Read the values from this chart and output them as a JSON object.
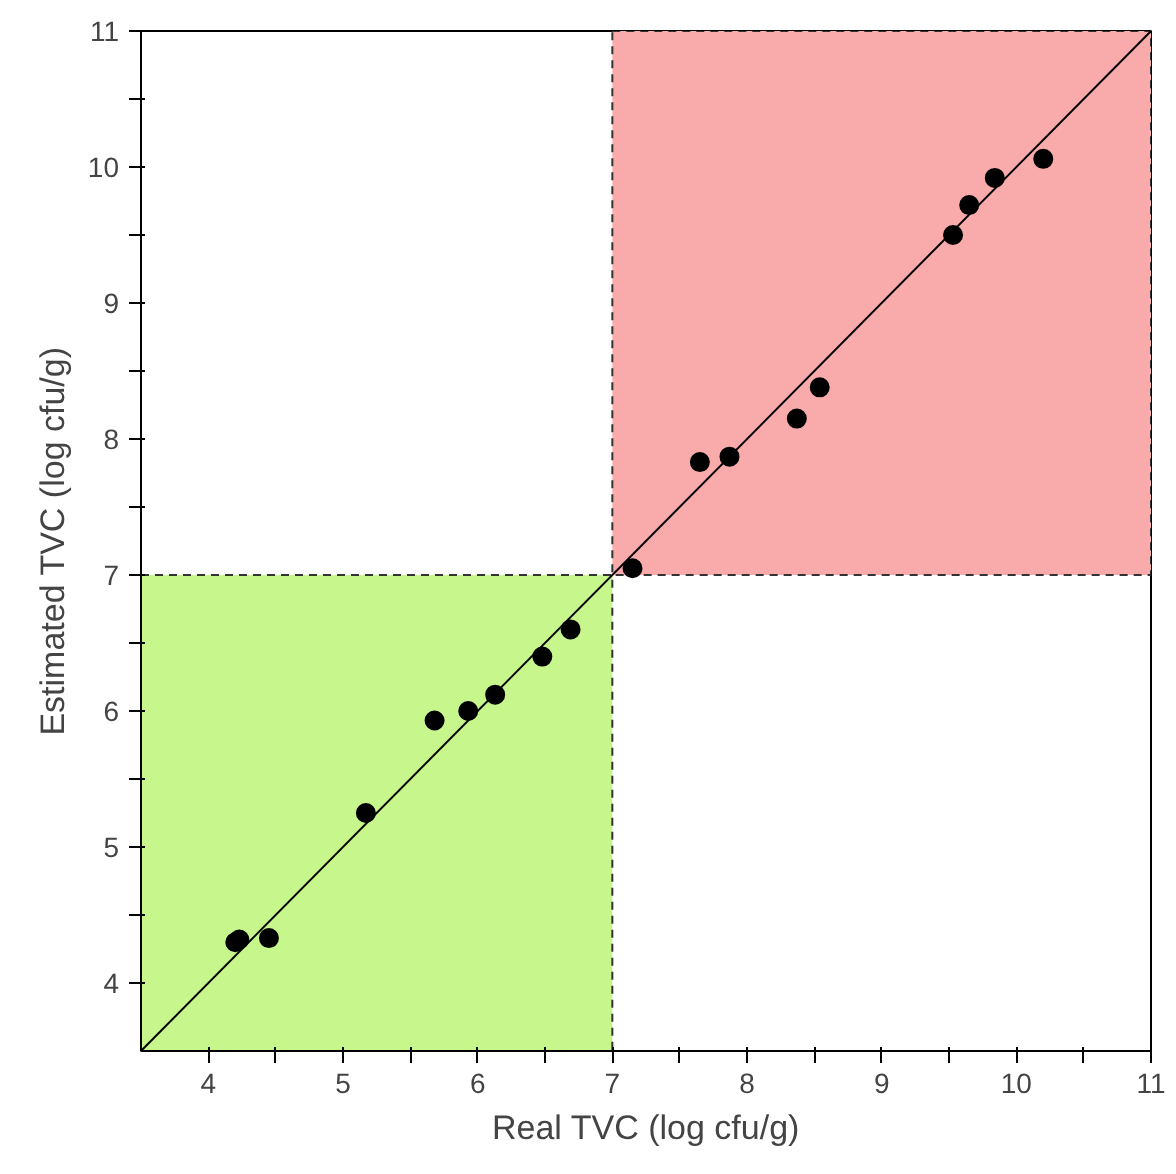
{
  "chart_data": {
    "type": "scatter",
    "xlabel": "Real TVC (log cfu/g)",
    "ylabel": "Estimated TVC (log cfu/g)",
    "xlim": [
      3.5,
      11
    ],
    "ylim": [
      3.5,
      11
    ],
    "xticks": [
      4,
      {
        "value": 4.5,
        "label": null
      },
      5,
      {
        "value": 5.5,
        "label": null
      },
      6,
      {
        "value": 6.5,
        "label": null
      },
      7,
      {
        "value": 7.5,
        "label": null
      },
      8,
      {
        "value": 8.5,
        "label": null
      },
      9,
      {
        "value": 9.5,
        "label": null
      },
      10,
      {
        "value": 10.5,
        "label": null
      },
      11
    ],
    "yticks": [
      4,
      {
        "value": 4.5,
        "label": null
      },
      5,
      {
        "value": 5.5,
        "label": null
      },
      6,
      {
        "value": 6.5,
        "label": null
      },
      7,
      {
        "value": 7.5,
        "label": null
      },
      8,
      {
        "value": 8.5,
        "label": null
      },
      9,
      {
        "value": 9.5,
        "label": null
      },
      10,
      {
        "value": 10.5,
        "label": null
      },
      11
    ],
    "grid": false,
    "marker": "circle",
    "bands": [
      {
        "axis": "x",
        "from": 3.5,
        "to": 7,
        "color": "#c6f68c"
      },
      {
        "axis": "x",
        "from": 7,
        "to": 11,
        "color": "#f9abab"
      }
    ],
    "series": [
      {
        "color": "#000000",
        "x": [
          4.2,
          4.23,
          4.45,
          5.17,
          5.68,
          5.93,
          6.13,
          6.48,
          6.69,
          7.15,
          7.65,
          7.87,
          8.37,
          8.54,
          9.53,
          9.65,
          9.84,
          10.2
        ],
        "values": [
          4.3,
          4.32,
          4.33,
          5.25,
          5.93,
          6.0,
          6.12,
          6.4,
          6.6,
          7.05,
          7.83,
          7.87,
          8.15,
          8.38,
          9.5,
          9.72,
          9.92,
          10.06
        ]
      },
      {
        "type": "line",
        "color": "#000000",
        "marker": "none",
        "x": [
          3.5,
          11
        ],
        "values": [
          3.5,
          11
        ]
      }
    ]
  }
}
